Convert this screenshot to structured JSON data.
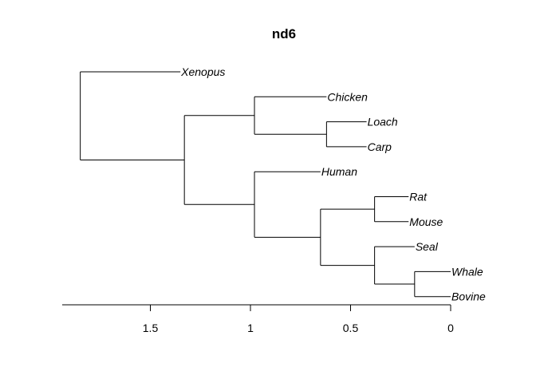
{
  "title": "nd6",
  "axis": {
    "ticks": [
      1.5,
      1,
      0.5,
      0
    ],
    "tick_labels": [
      "1.5",
      "1",
      "0.5",
      "0"
    ]
  },
  "tree": {
    "tips": [
      "Xenopus",
      "Chicken",
      "Loach",
      "Carp",
      "Human",
      "Rat",
      "Mouse",
      "Seal",
      "Whale",
      "Bovine"
    ],
    "tip_heights": {
      "Xenopus": 1.35,
      "Chicken": 0.62,
      "Loach": 0.42,
      "Carp": 0.42,
      "Human": 0.65,
      "Rat": 0.21,
      "Mouse": 0.21,
      "Seal": 0.18,
      "Whale": 0.0,
      "Bovine": 0.0
    },
    "nodes": [
      {
        "id": "loach_carp",
        "height": 0.62,
        "children": [
          "Loach",
          "Carp"
        ]
      },
      {
        "id": "chicken_fish",
        "height": 0.98,
        "children": [
          "Chicken",
          "loach_carp"
        ]
      },
      {
        "id": "rat_mouse",
        "height": 0.38,
        "children": [
          "Rat",
          "Mouse"
        ]
      },
      {
        "id": "whale_bovine",
        "height": 0.18,
        "children": [
          "Whale",
          "Bovine"
        ]
      },
      {
        "id": "seal_group",
        "height": 0.38,
        "children": [
          "Seal",
          "whale_bovine"
        ]
      },
      {
        "id": "mammals",
        "height": 0.65,
        "children": [
          "rat_mouse",
          "seal_group"
        ]
      },
      {
        "id": "human_mammals",
        "height": 0.98,
        "children": [
          "Human",
          "mammals"
        ]
      },
      {
        "id": "inner",
        "height": 1.33,
        "children": [
          "chicken_fish",
          "human_mammals"
        ]
      },
      {
        "id": "root",
        "height": 1.85,
        "children": [
          "Xenopus",
          "inner"
        ]
      }
    ],
    "root": "root"
  }
}
